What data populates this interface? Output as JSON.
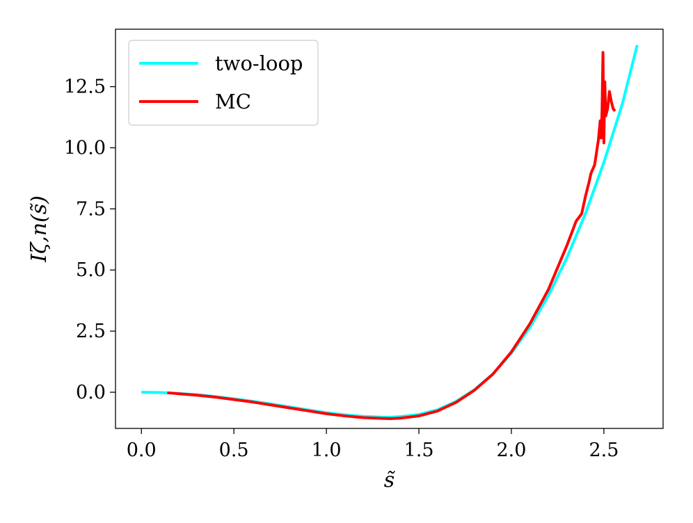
{
  "chart_data": {
    "type": "line",
    "title": "",
    "xlabel": "s̃",
    "ylabel": "Iζ,n(s̃)",
    "xlim": [
      -0.14,
      2.82
    ],
    "ylim": [
      -1.48,
      14.85
    ],
    "xticks": [
      0.0,
      0.5,
      1.0,
      1.5,
      2.0,
      2.5
    ],
    "xtick_labels": [
      "0.0",
      "0.5",
      "1.0",
      "1.5",
      "2.0",
      "2.5"
    ],
    "yticks": [
      0.0,
      2.5,
      5.0,
      7.5,
      10.0,
      12.5
    ],
    "ytick_labels": [
      "0.0",
      "2.5",
      "5.0",
      "7.5",
      "10.0",
      "12.5"
    ],
    "grid": false,
    "legend_position": "top-left",
    "series": [
      {
        "name": "two-loop",
        "color": "#00ffff",
        "x": [
          0.0,
          0.1,
          0.2,
          0.3,
          0.4,
          0.5,
          0.6,
          0.7,
          0.8,
          0.9,
          1.0,
          1.1,
          1.2,
          1.3,
          1.35,
          1.4,
          1.5,
          1.6,
          1.7,
          1.8,
          1.9,
          2.0,
          2.1,
          2.2,
          2.3,
          2.4,
          2.5,
          2.6,
          2.68
        ],
        "y": [
          0.0,
          -0.01,
          -0.05,
          -0.1,
          -0.18,
          -0.27,
          -0.37,
          -0.48,
          -0.6,
          -0.72,
          -0.84,
          -0.93,
          -0.99,
          -1.02,
          -1.02,
          -1.0,
          -0.91,
          -0.72,
          -0.38,
          0.1,
          0.75,
          1.6,
          2.65,
          3.95,
          5.5,
          7.3,
          9.4,
          11.8,
          14.2
        ]
      },
      {
        "name": "MC",
        "color": "#ff0000",
        "x": [
          0.14,
          0.2,
          0.3,
          0.4,
          0.5,
          0.6,
          0.7,
          0.8,
          0.9,
          1.0,
          1.1,
          1.2,
          1.3,
          1.35,
          1.4,
          1.5,
          1.6,
          1.7,
          1.8,
          1.9,
          2.0,
          2.1,
          2.2,
          2.3,
          2.35,
          2.38,
          2.4,
          2.42,
          2.43,
          2.45,
          2.46,
          2.47,
          2.48,
          2.485,
          2.49,
          2.495,
          2.5,
          2.505,
          2.51,
          2.52,
          2.53,
          2.54,
          2.55,
          2.56
        ],
        "y": [
          -0.02,
          -0.06,
          -0.12,
          -0.2,
          -0.3,
          -0.4,
          -0.52,
          -0.64,
          -0.76,
          -0.88,
          -0.97,
          -1.04,
          -1.07,
          -1.08,
          -1.06,
          -0.97,
          -0.77,
          -0.42,
          0.08,
          0.74,
          1.65,
          2.8,
          4.2,
          6.0,
          7.0,
          7.3,
          8.0,
          8.6,
          8.95,
          9.3,
          9.8,
          10.3,
          11.1,
          10.4,
          11.5,
          13.9,
          10.2,
          12.7,
          11.3,
          11.6,
          12.3,
          11.9,
          11.6,
          11.5
        ]
      }
    ]
  }
}
